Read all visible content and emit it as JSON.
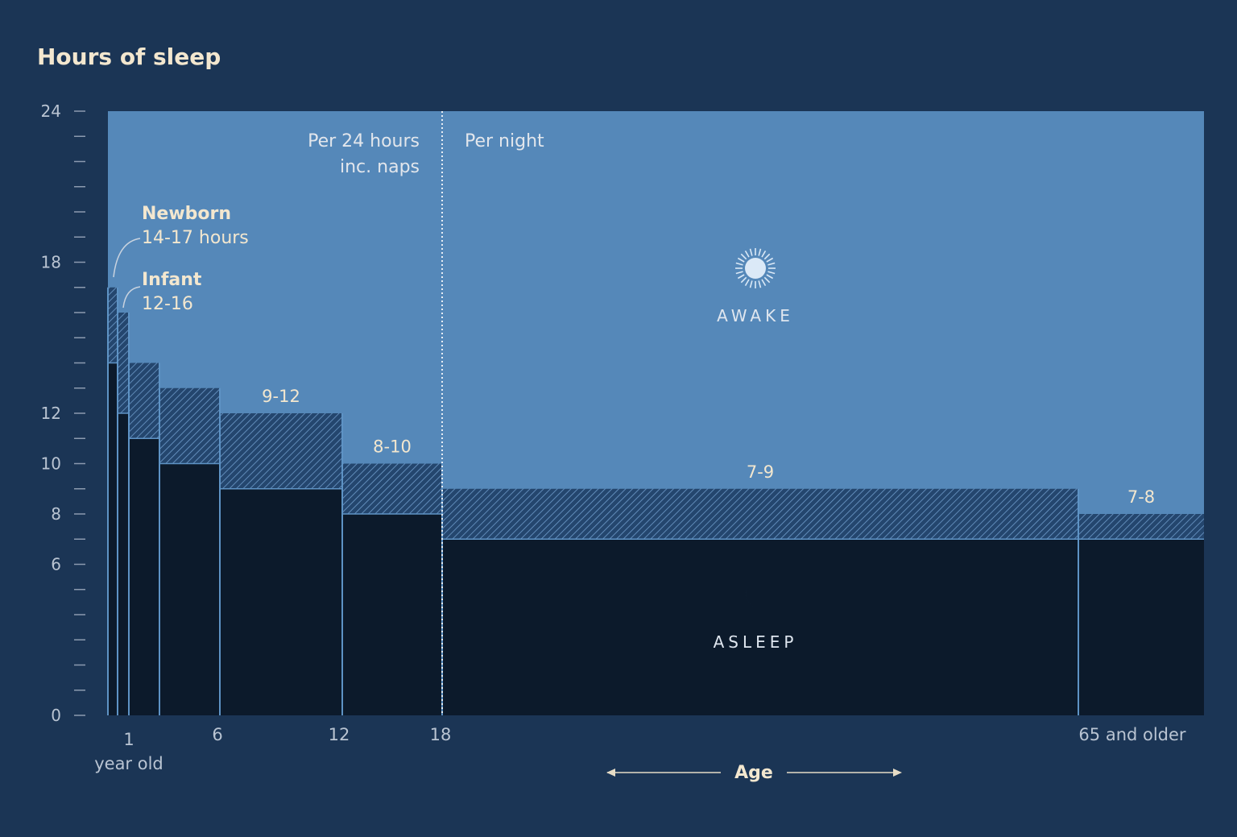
{
  "chart_data": {
    "type": "bar",
    "title": "Hours of sleep",
    "xlabel": "Age",
    "ylim": [
      0,
      24
    ],
    "y_ticks": [
      "0",
      "6",
      "8",
      "10",
      "12",
      "18",
      "24"
    ],
    "x_ticks": [
      "1",
      "6",
      "12",
      "18",
      "65 and older"
    ],
    "x_tick_sublabel": "year old",
    "period_labels": {
      "per_24h_line1": "Per 24 hours",
      "per_24h_line2": "inc. naps",
      "per_night": "Per night"
    },
    "state_labels": {
      "awake": "AWAKE",
      "asleep": "ASLEEP"
    },
    "age_groups": [
      {
        "name": "Newborn",
        "range_label": "14-17 hours",
        "min_hours": 14,
        "max_hours": 17
      },
      {
        "name": "Infant",
        "range_label": "12-16",
        "min_hours": 12,
        "max_hours": 16
      },
      {
        "name": "",
        "range_label": "",
        "min_hours": 11,
        "max_hours": 14
      },
      {
        "name": "",
        "range_label": "",
        "min_hours": 10,
        "max_hours": 13
      },
      {
        "name": "",
        "range_label": "9-12",
        "min_hours": 9,
        "max_hours": 12
      },
      {
        "name": "",
        "range_label": "8-10",
        "min_hours": 8,
        "max_hours": 10
      },
      {
        "name": "",
        "range_label": "7-9",
        "min_hours": 7,
        "max_hours": 9
      },
      {
        "name": "",
        "range_label": "7-8",
        "min_hours": 7,
        "max_hours": 8
      }
    ],
    "colors": {
      "background": "#1b3555",
      "awake": "#5588b9",
      "asleep": "#0c1a2b",
      "range_hatch": "#24466e",
      "divider": "#5e93c5",
      "text": "#f3e7cf"
    }
  }
}
